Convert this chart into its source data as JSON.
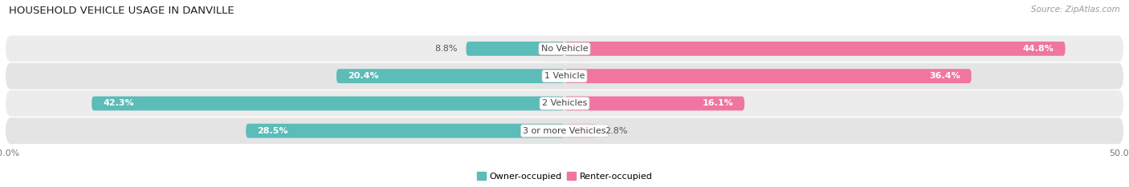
{
  "title": "HOUSEHOLD VEHICLE USAGE IN DANVILLE",
  "source": "Source: ZipAtlas.com",
  "categories": [
    "No Vehicle",
    "1 Vehicle",
    "2 Vehicles",
    "3 or more Vehicles"
  ],
  "owner_values": [
    8.8,
    20.4,
    42.3,
    28.5
  ],
  "renter_values": [
    44.8,
    36.4,
    16.1,
    2.8
  ],
  "owner_color": "#5bbcb8",
  "renter_color": "#f075a0",
  "renter_color_light": "#f9afc8",
  "axis_limit": 50.0,
  "row_bg_colors": [
    "#ececec",
    "#e4e4e4",
    "#ececec",
    "#e4e4e4"
  ],
  "bar_height": 0.52,
  "title_fontsize": 9.5,
  "label_fontsize": 8.0,
  "tick_fontsize": 8.0,
  "source_fontsize": 7.5,
  "inside_label_threshold": 15
}
